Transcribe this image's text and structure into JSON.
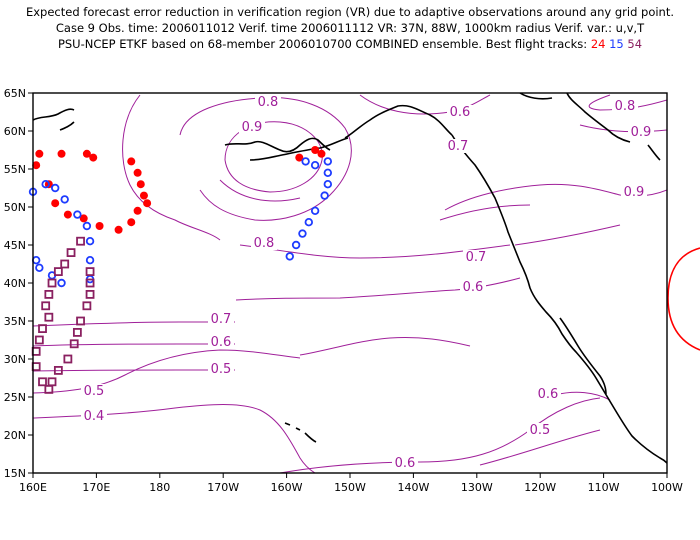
{
  "title": {
    "line1": "Expected forecast error reduction in verification region (VR) due to adaptive observations around any grid point.",
    "line2": "Case 9  Obs. time: 2006011012  Verif. time 2006011112  VR: 37N, 88W, 1000km radius  Verif. var.: u,v,T",
    "line3_prefix": "PSU-NCEP ETKF based on 68-member 2006010700 COMBINED ensemble.  Best flight tracks: ",
    "track_24": "24",
    "track_15": "15",
    "track_54": "54"
  },
  "colors": {
    "contour": "#a0209a",
    "track_24": "#ff0000",
    "track_15": "#1e3cff",
    "track_54": "#8a2060",
    "coast": "#000000",
    "vr_circle": "#ff0000"
  },
  "axes": {
    "x_ticks": [
      "160E",
      "170E",
      "180",
      "170W",
      "160W",
      "150W",
      "140W",
      "130W",
      "120W",
      "110W",
      "100W"
    ],
    "y_ticks": [
      "65N",
      "60N",
      "55N",
      "50N",
      "45N",
      "40N",
      "35N",
      "30N",
      "25N",
      "20N",
      "15N"
    ]
  },
  "contour_labels": [
    "0.8",
    "0.9",
    "0.6",
    "0.7",
    "0.8",
    "0.9",
    "0.9",
    "0.8",
    "0.7",
    "0.6",
    "0.7",
    "0.6",
    "0.5",
    "0.5",
    "0.4",
    "0.6",
    "0.5",
    "0.6"
  ],
  "tracks": {
    "track_24": {
      "name": "24",
      "marker": "filled-circle",
      "points": [
        [
          169.5,
          56.5
        ],
        [
          175.5,
          56.0
        ],
        [
          176.5,
          54.5
        ],
        [
          177.0,
          53.0
        ],
        [
          177.5,
          51.5
        ],
        [
          178.0,
          50.5
        ],
        [
          176.5,
          49.5
        ],
        [
          175.5,
          48.0
        ],
        [
          173.5,
          47.0
        ],
        [
          170.5,
          47.5
        ],
        [
          168.0,
          48.5
        ],
        [
          165.5,
          49.0
        ],
        [
          163.5,
          50.5
        ],
        [
          162.5,
          53.0
        ],
        [
          160.5,
          55.5
        ],
        [
          158.0,
          56.5
        ],
        [
          155.5,
          57.5
        ],
        [
          154.5,
          57.0
        ],
        [
          161.0,
          57.0
        ],
        [
          164.5,
          57.0
        ],
        [
          168.5,
          57.0
        ]
      ]
    },
    "track_15": {
      "name": "15",
      "marker": "open-circle",
      "points": [
        [
          153.5,
          56.0
        ],
        [
          153.5,
          54.5
        ],
        [
          153.5,
          53.0
        ],
        [
          154.0,
          51.5
        ],
        [
          155.5,
          49.5
        ],
        [
          156.5,
          48.0
        ],
        [
          157.5,
          46.5
        ],
        [
          158.5,
          45.0
        ],
        [
          159.5,
          43.5
        ],
        [
          161.0,
          42.0
        ],
        [
          163.0,
          41.0
        ],
        [
          164.5,
          40.0
        ],
        [
          160.5,
          43.0
        ],
        [
          160.0,
          52.0
        ],
        [
          162.0,
          53.0
        ],
        [
          163.5,
          52.5
        ],
        [
          165.0,
          51.0
        ],
        [
          167.0,
          49.0
        ],
        [
          168.5,
          47.5
        ],
        [
          169.0,
          45.5
        ],
        [
          169.0,
          43.0
        ],
        [
          169.0,
          40.5
        ],
        [
          157.0,
          56.0
        ],
        [
          155.5,
          55.5
        ]
      ]
    },
    "track_54": {
      "name": "54",
      "marker": "open-square",
      "points": [
        [
          167.5,
          45.5
        ],
        [
          166.0,
          44.0
        ],
        [
          165.0,
          42.5
        ],
        [
          164.0,
          41.5
        ],
        [
          163.0,
          40.0
        ],
        [
          162.5,
          38.5
        ],
        [
          162.0,
          37.0
        ],
        [
          162.5,
          35.5
        ],
        [
          161.5,
          34.0
        ],
        [
          161.0,
          32.5
        ],
        [
          160.5,
          31.0
        ],
        [
          160.5,
          29.0
        ],
        [
          161.5,
          27.0
        ],
        [
          162.5,
          26.0
        ],
        [
          163.0,
          27.0
        ],
        [
          164.0,
          28.5
        ],
        [
          165.5,
          30.0
        ],
        [
          166.5,
          32.0
        ],
        [
          167.0,
          33.5
        ],
        [
          167.5,
          35.0
        ],
        [
          168.5,
          37.0
        ],
        [
          169.0,
          38.5
        ],
        [
          169.0,
          40.0
        ],
        [
          169.0,
          41.5
        ]
      ]
    }
  }
}
